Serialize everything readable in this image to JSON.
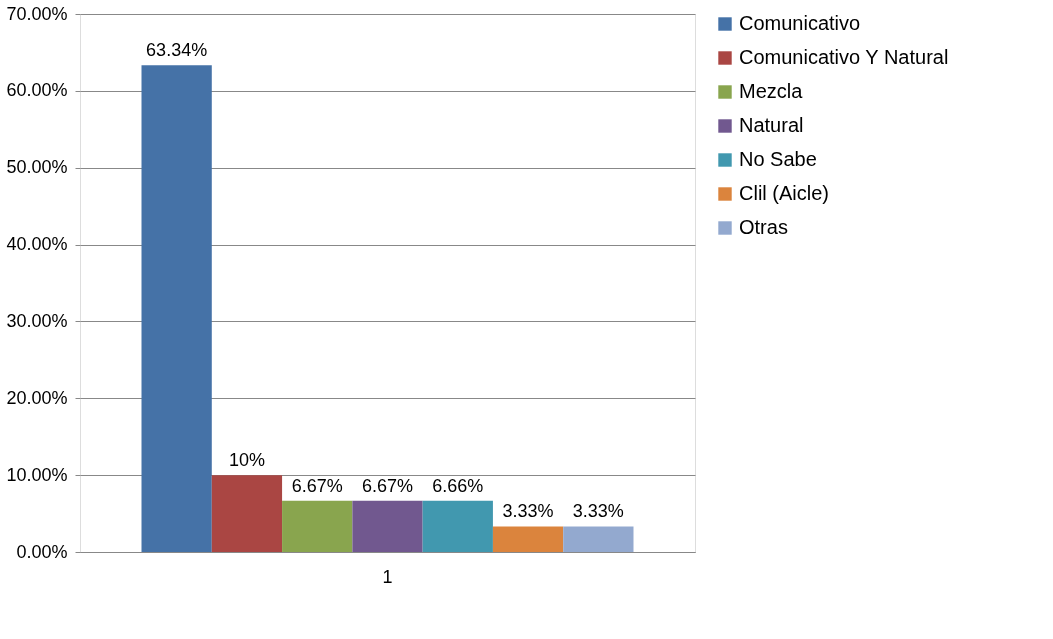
{
  "chart_data": {
    "type": "bar",
    "categories": [
      "1"
    ],
    "series": [
      {
        "name": "Comunicativo",
        "color": "#4572a7",
        "values": [
          63.34
        ],
        "value_labels": [
          "63.34%"
        ]
      },
      {
        "name": "Comunicativo Y Natural",
        "color": "#aa4643",
        "values": [
          10
        ],
        "value_labels": [
          "10%"
        ]
      },
      {
        "name": "Mezcla",
        "color": "#89a54e",
        "values": [
          6.67
        ],
        "value_labels": [
          "6.67%"
        ]
      },
      {
        "name": "Natural",
        "color": "#71588f",
        "values": [
          6.67
        ],
        "value_labels": [
          "6.67%"
        ]
      },
      {
        "name": "No Sabe",
        "color": "#4198af",
        "values": [
          6.66
        ],
        "value_labels": [
          "6.66%"
        ]
      },
      {
        "name": "Clil (Aicle)",
        "color": "#db843d",
        "values": [
          3.33
        ],
        "value_labels": [
          "3.33%"
        ]
      },
      {
        "name": "Otras",
        "color": "#93a9cf",
        "values": [
          3.33
        ],
        "value_labels": [
          "3.33%"
        ]
      }
    ],
    "ylim": [
      0,
      70
    ],
    "yticks": [
      {
        "value": 0,
        "label": "0.00%"
      },
      {
        "value": 10,
        "label": "10.00%"
      },
      {
        "value": 20,
        "label": "20.00%"
      },
      {
        "value": 30,
        "label": "30.00%"
      },
      {
        "value": 40,
        "label": "40.00%"
      },
      {
        "value": 50,
        "label": "50.00%"
      },
      {
        "value": 60,
        "label": "60.00%"
      },
      {
        "value": 70,
        "label": "70.00%"
      }
    ],
    "grid": "y",
    "legend": "right"
  }
}
